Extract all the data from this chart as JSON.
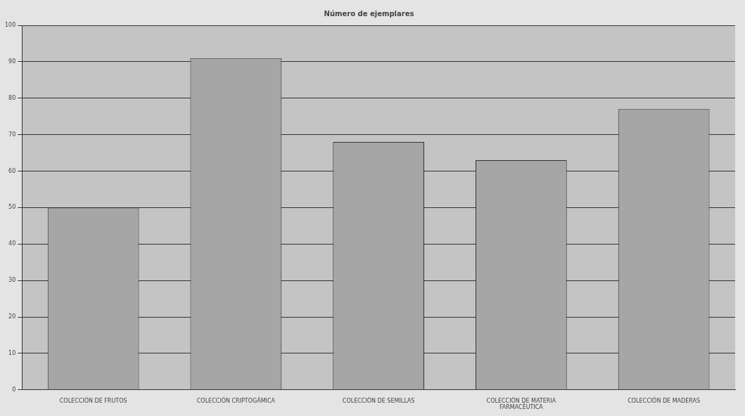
{
  "chart_data": {
    "type": "bar",
    "title": "Número de ejemplares",
    "categories": [
      "COLECCIÓN DE FRUTOS",
      "COLECCIÓN CRIPTOGÁMICA",
      "COLECCIÓN DE SEMILLAS",
      "COLECCIÓN DE MATERIA FARMACÉUTICA",
      "COLECCIÓN DE MADERAS"
    ],
    "values": [
      50,
      91,
      68,
      63,
      77
    ],
    "color": "#a6a6a6",
    "ylim": [
      0,
      100
    ],
    "yticks": [
      0,
      10,
      20,
      30,
      40,
      50,
      60,
      70,
      80,
      90,
      100
    ],
    "grid": "y"
  }
}
